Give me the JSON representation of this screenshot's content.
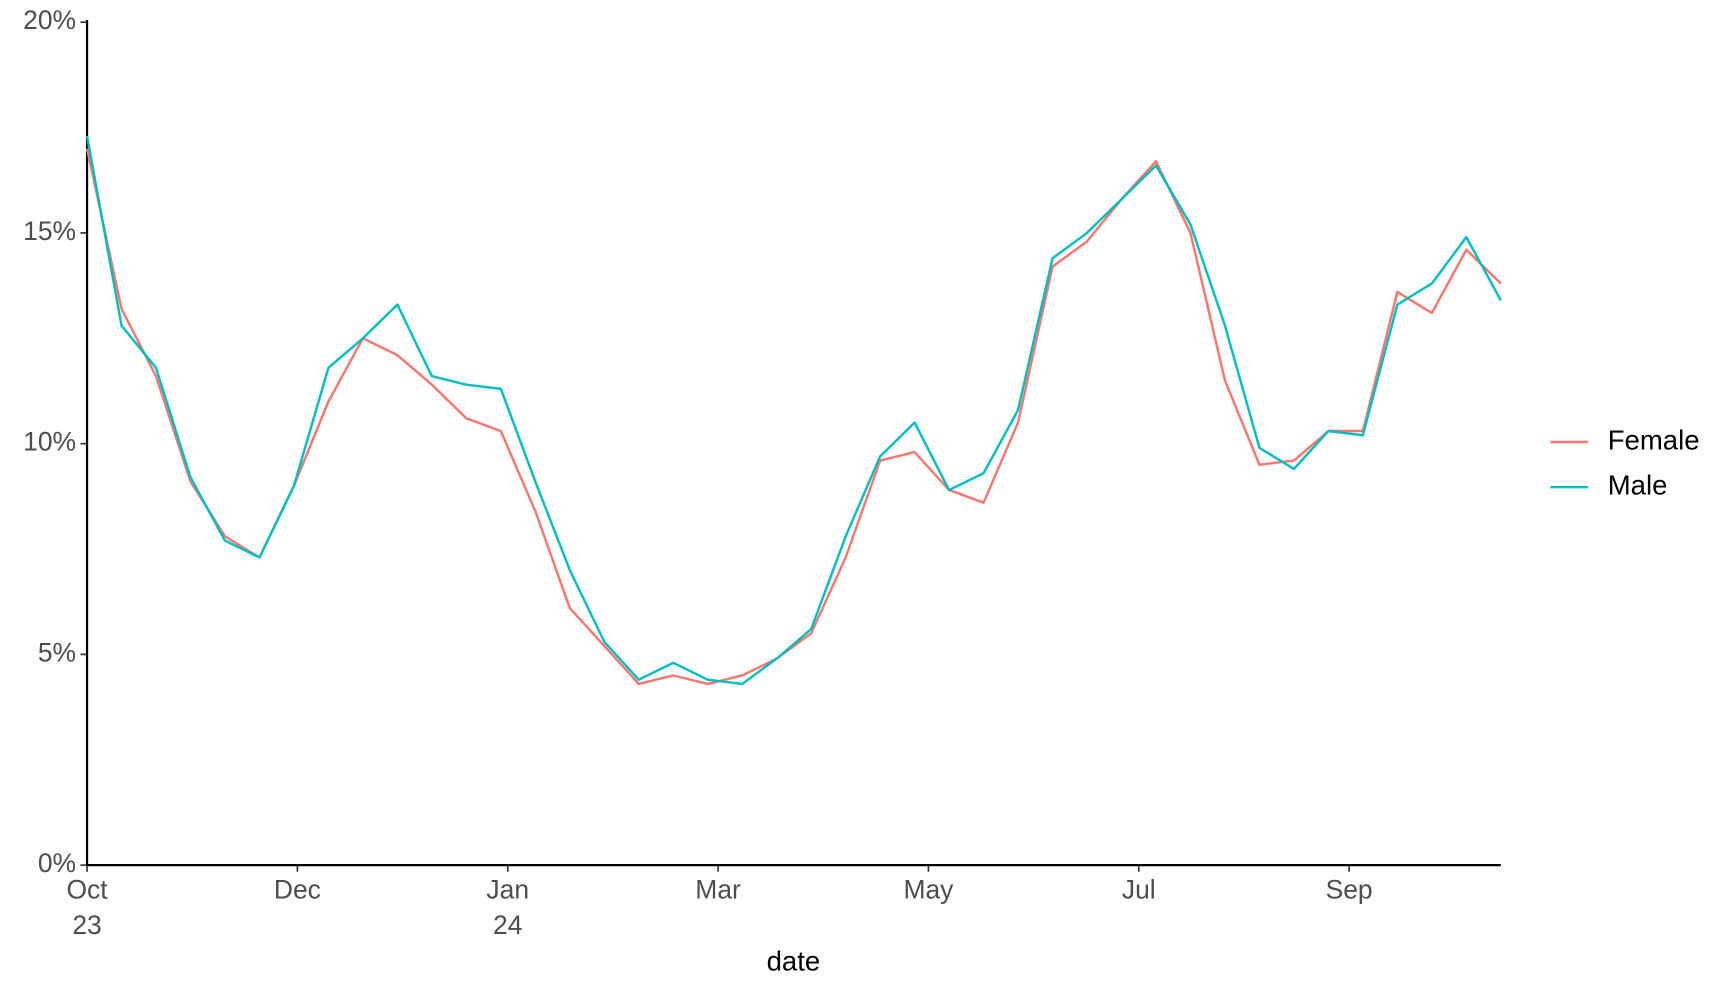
{
  "chart_data": {
    "type": "line",
    "x_label": "date",
    "x": [
      "2023-10-01",
      "2023-10-11",
      "2023-10-21",
      "2023-10-31",
      "2023-11-10",
      "2023-11-20",
      "2023-11-30",
      "2023-12-10",
      "2023-12-20",
      "2023-12-30",
      "2024-01-09",
      "2024-01-19",
      "2024-01-29",
      "2024-02-08",
      "2024-02-18",
      "2024-02-28",
      "2024-03-09",
      "2024-03-19",
      "2024-03-29",
      "2024-04-08",
      "2024-04-18",
      "2024-04-28",
      "2024-05-08",
      "2024-05-18",
      "2024-05-28",
      "2024-06-07",
      "2024-06-17",
      "2024-06-27",
      "2024-07-07",
      "2024-07-17",
      "2024-07-27",
      "2024-08-06",
      "2024-08-16",
      "2024-08-26",
      "2024-09-05",
      "2024-09-15",
      "2024-09-25",
      "2024-10-05",
      "2024-10-15",
      "2024-10-25",
      "2024-11-04",
      "2024-11-14"
    ],
    "series": [
      {
        "name": "Female",
        "color": "#f8766d",
        "values": [
          17.0,
          13.2,
          11.6,
          9.1,
          7.8,
          7.3,
          9.0,
          11.0,
          12.5,
          12.1,
          11.4,
          10.6,
          10.3,
          8.4,
          6.1,
          5.2,
          4.3,
          4.5,
          4.3,
          4.5,
          4.9,
          5.5,
          7.3,
          9.6,
          9.8,
          8.9,
          8.6,
          10.5,
          14.2,
          14.8,
          15.8,
          16.7,
          15.0,
          11.5,
          9.5,
          9.6,
          10.3,
          10.3,
          13.6,
          13.1,
          14.6,
          13.8
        ]
      },
      {
        "name": "Male",
        "color": "#00bfc4",
        "values": [
          17.3,
          12.8,
          11.8,
          9.2,
          7.7,
          7.3,
          9.0,
          11.8,
          12.5,
          13.3,
          11.6,
          11.4,
          11.3,
          9.1,
          7.0,
          5.3,
          4.4,
          4.8,
          4.4,
          4.3,
          4.9,
          5.6,
          7.8,
          9.7,
          10.5,
          8.9,
          9.3,
          10.8,
          14.4,
          15.0,
          15.8,
          16.6,
          15.2,
          12.8,
          9.9,
          9.4,
          10.3,
          10.2,
          13.3,
          13.8,
          14.9,
          13.4
        ]
      }
    ],
    "xlim": [
      "2023-10-01",
      "2024-11-14"
    ],
    "xticks": [
      {
        "value": "2023-10-01",
        "label": "Oct\n23"
      },
      {
        "value": "2023-12-01",
        "label": "Dec"
      },
      {
        "value": "2024-01-31",
        "label": "Jan\n24"
      },
      {
        "value": "2024-04-01",
        "label": "Mar"
      },
      {
        "value": "2024-06-01",
        "label": "May"
      },
      {
        "value": "2024-08-01",
        "label": "Jul"
      },
      {
        "value": "2024-10-01",
        "label": "Sep"
      }
    ],
    "ylim": [
      0,
      20
    ],
    "yticks": [
      {
        "value": 0,
        "label": "0%"
      },
      {
        "value": 5,
        "label": "5%"
      },
      {
        "value": 10,
        "label": "10%"
      },
      {
        "value": 15,
        "label": "15%"
      },
      {
        "value": 20,
        "label": "20%"
      }
    ],
    "legend_position": "right"
  }
}
